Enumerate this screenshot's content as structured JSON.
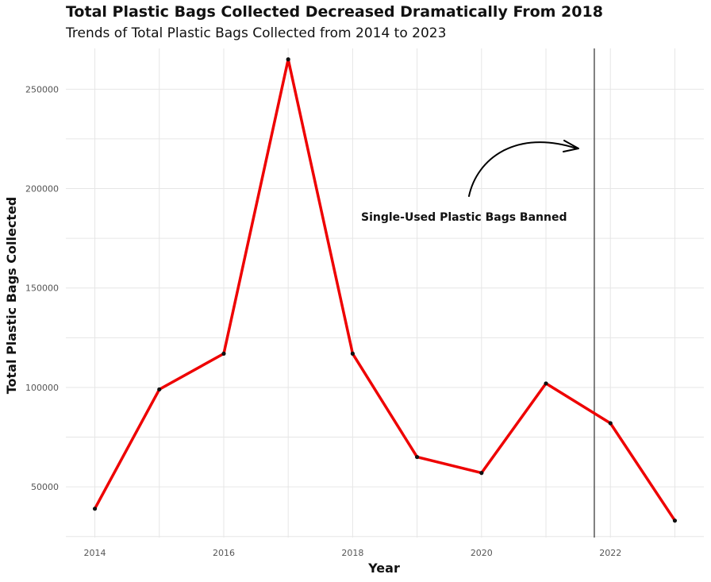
{
  "chart_data": {
    "type": "line",
    "title": "Total Plastic Bags Collected Decreased Dramatically From 2018",
    "subtitle": "Trends of Total Plastic Bags Collected from 2014 to 2023",
    "xlabel": "Year",
    "ylabel": "Total Plastic Bags Collected",
    "x": [
      2014,
      2015,
      2016,
      2017,
      2018,
      2019,
      2020,
      2021,
      2022,
      2023
    ],
    "series": [
      {
        "values": [
          39000,
          99000,
          117000,
          265000,
          117000,
          65000,
          57000,
          102000,
          82000,
          33000
        ],
        "color": "#ee0000"
      }
    ],
    "xlim": [
      2013.55,
      2023.45
    ],
    "ylim": [
      24500,
      270500
    ],
    "x_ticks": [
      2014,
      2016,
      2018,
      2020,
      2022
    ],
    "y_ticks": [
      50000,
      100000,
      150000,
      200000,
      250000
    ],
    "vline": {
      "x": 2021.75,
      "color": "#555555"
    },
    "annotation": {
      "text": "Single-Used Plastic Bags Banned",
      "arrow": "curved",
      "points_to": "vertical line"
    },
    "grid": true,
    "legend": "none"
  }
}
